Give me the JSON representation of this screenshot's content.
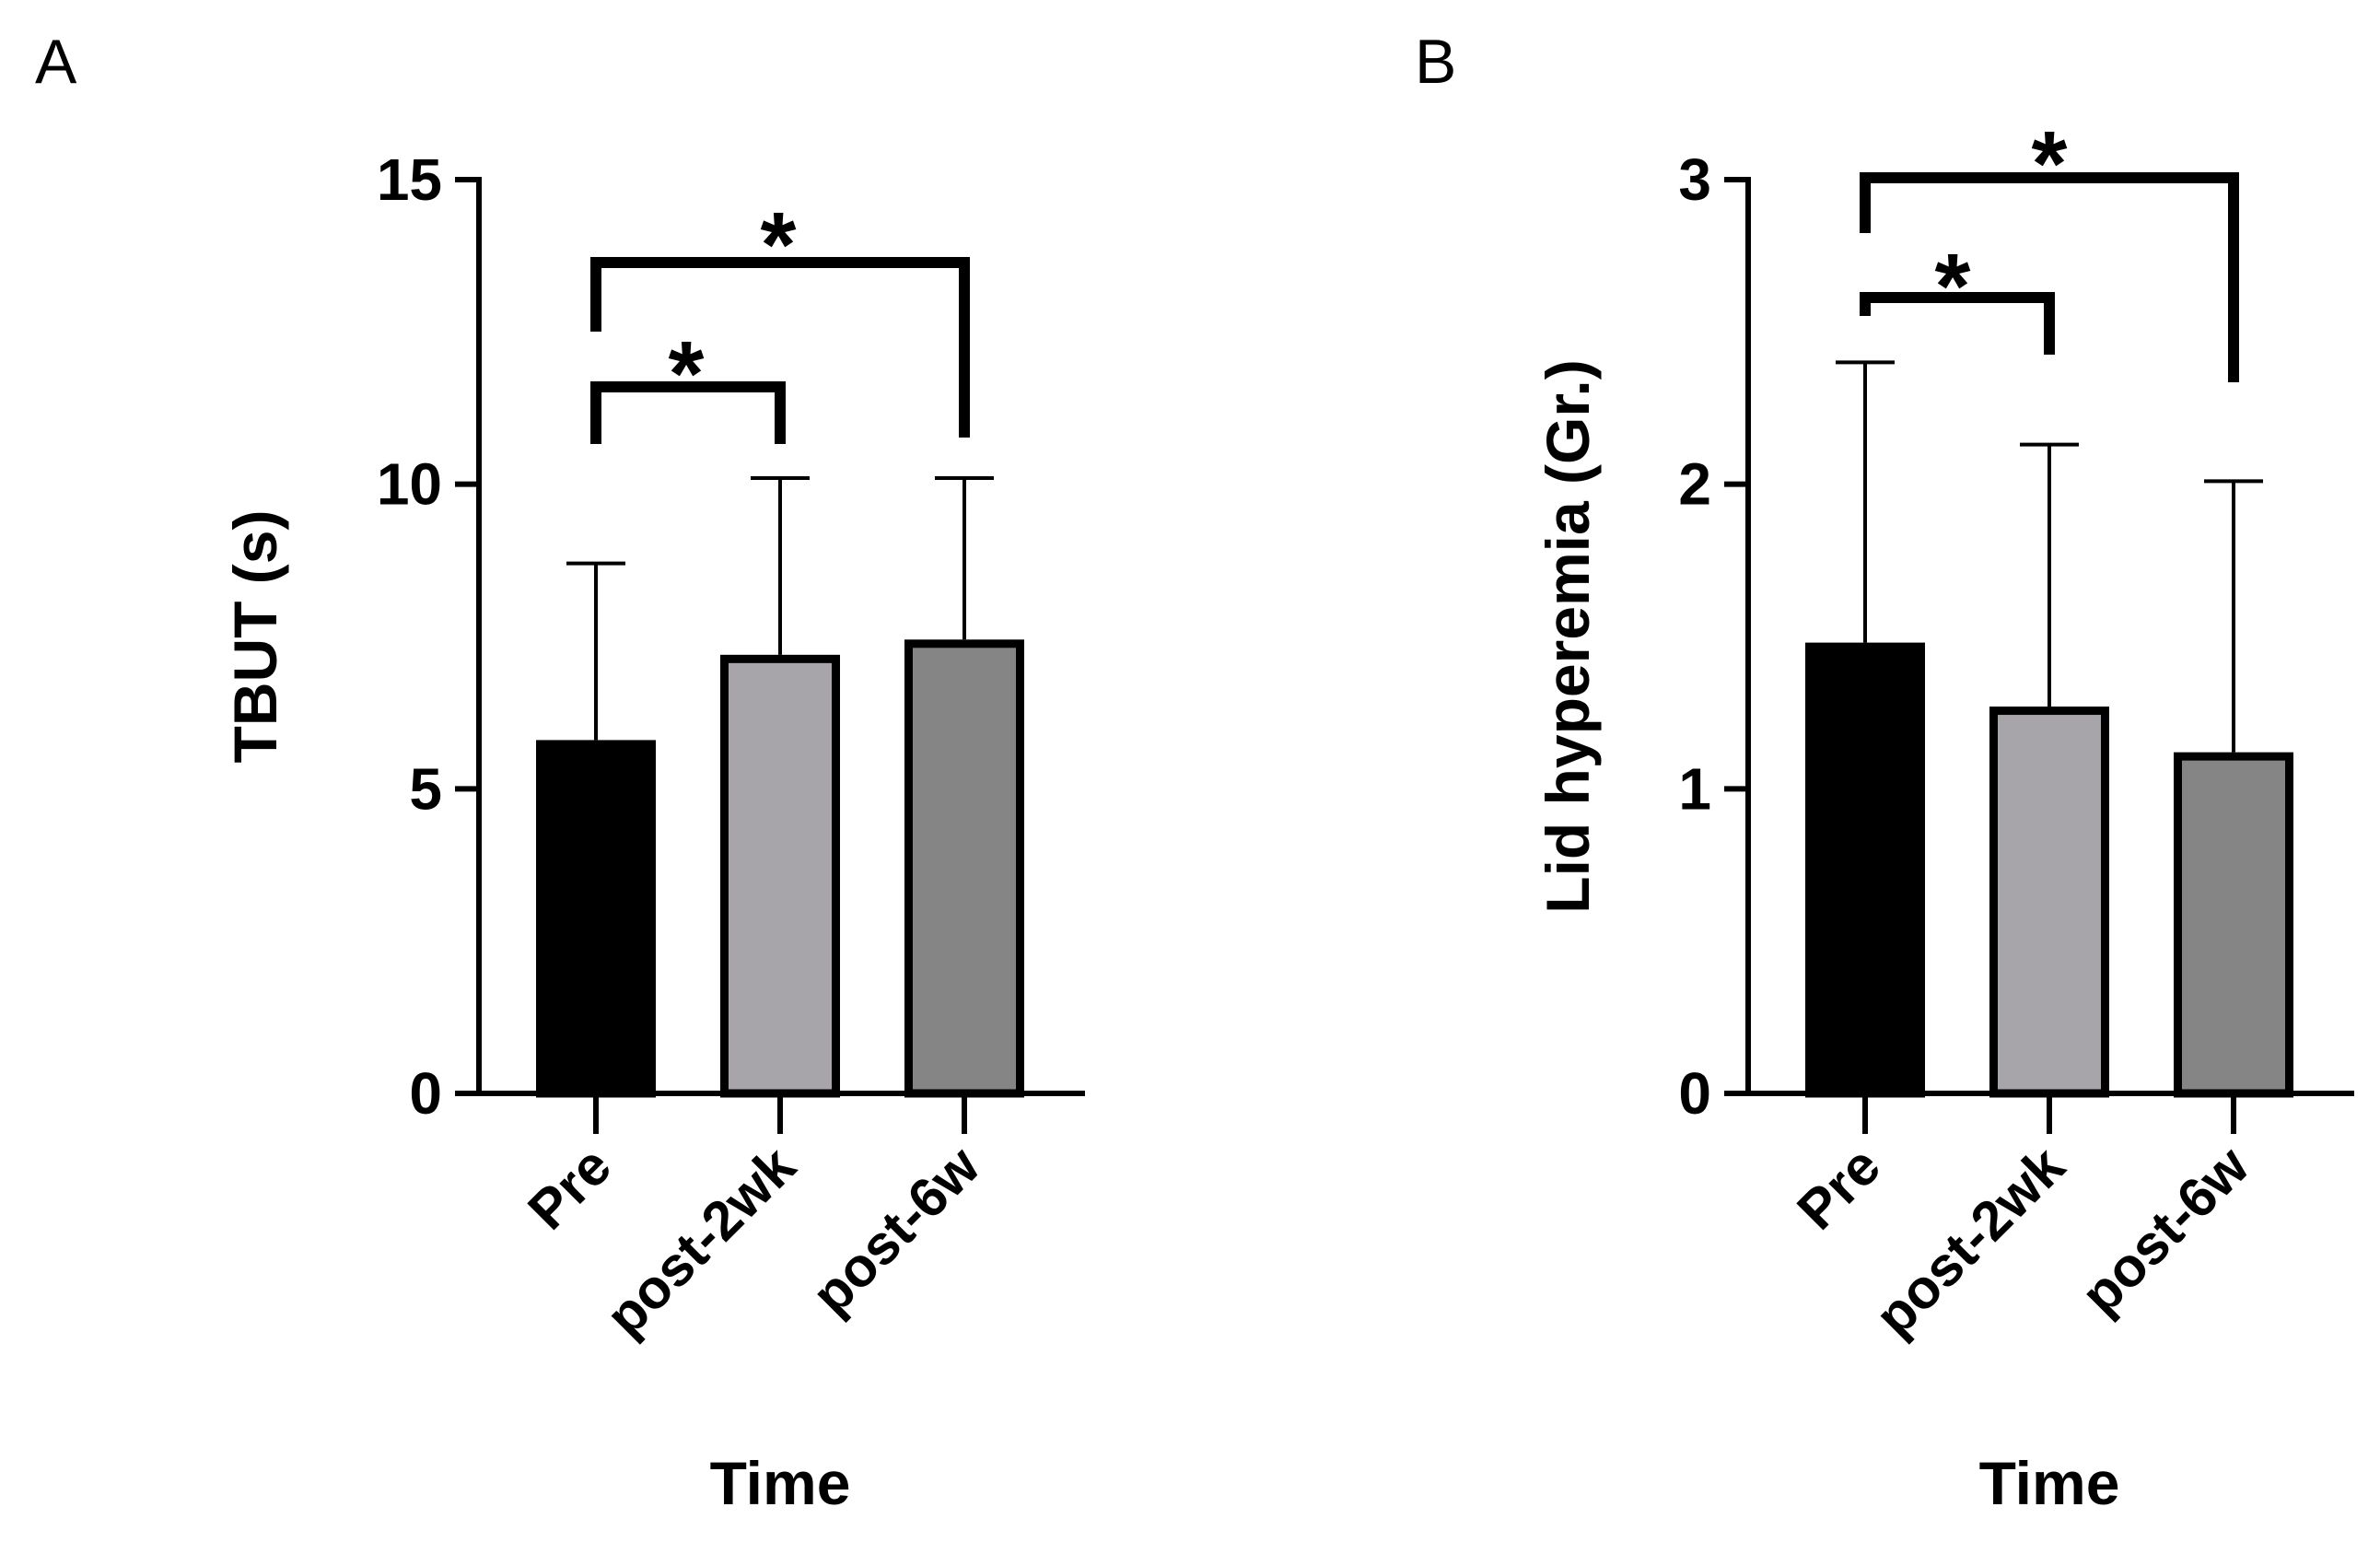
{
  "chart_data": [
    {
      "type": "bar",
      "panel": "A",
      "categories": [
        "Pre",
        "post-2wk",
        "post-6w"
      ],
      "values": [
        5.8,
        7.2,
        7.45
      ],
      "error": [
        2.9,
        2.9,
        2.65
      ],
      "colors": [
        "#000000",
        "#a7a5aa",
        "#858585"
      ],
      "xlabel": "Time",
      "ylabel": "TBUT (s)",
      "ylim": [
        0,
        15
      ],
      "yticks": [
        "0",
        "5",
        "10",
        "15"
      ],
      "significance": [
        {
          "from": 0,
          "to": 1,
          "label": "*"
        },
        {
          "from": 0,
          "to": 2,
          "label": "*"
        }
      ]
    },
    {
      "type": "bar",
      "panel": "B",
      "categories": [
        "Pre",
        "post-2wk",
        "post-6w"
      ],
      "values": [
        1.48,
        1.27,
        1.12
      ],
      "error": [
        0.92,
        0.86,
        0.89
      ],
      "colors": [
        "#000000",
        "#a7a5aa",
        "#858585"
      ],
      "xlabel": "Time",
      "ylabel": "Lid hyperemia (Gr.)",
      "ylim": [
        0,
        3
      ],
      "yticks": [
        "0",
        "1",
        "2",
        "3"
      ],
      "significance": [
        {
          "from": 0,
          "to": 1,
          "label": "*"
        },
        {
          "from": 0,
          "to": 2,
          "label": "*"
        }
      ]
    }
  ]
}
